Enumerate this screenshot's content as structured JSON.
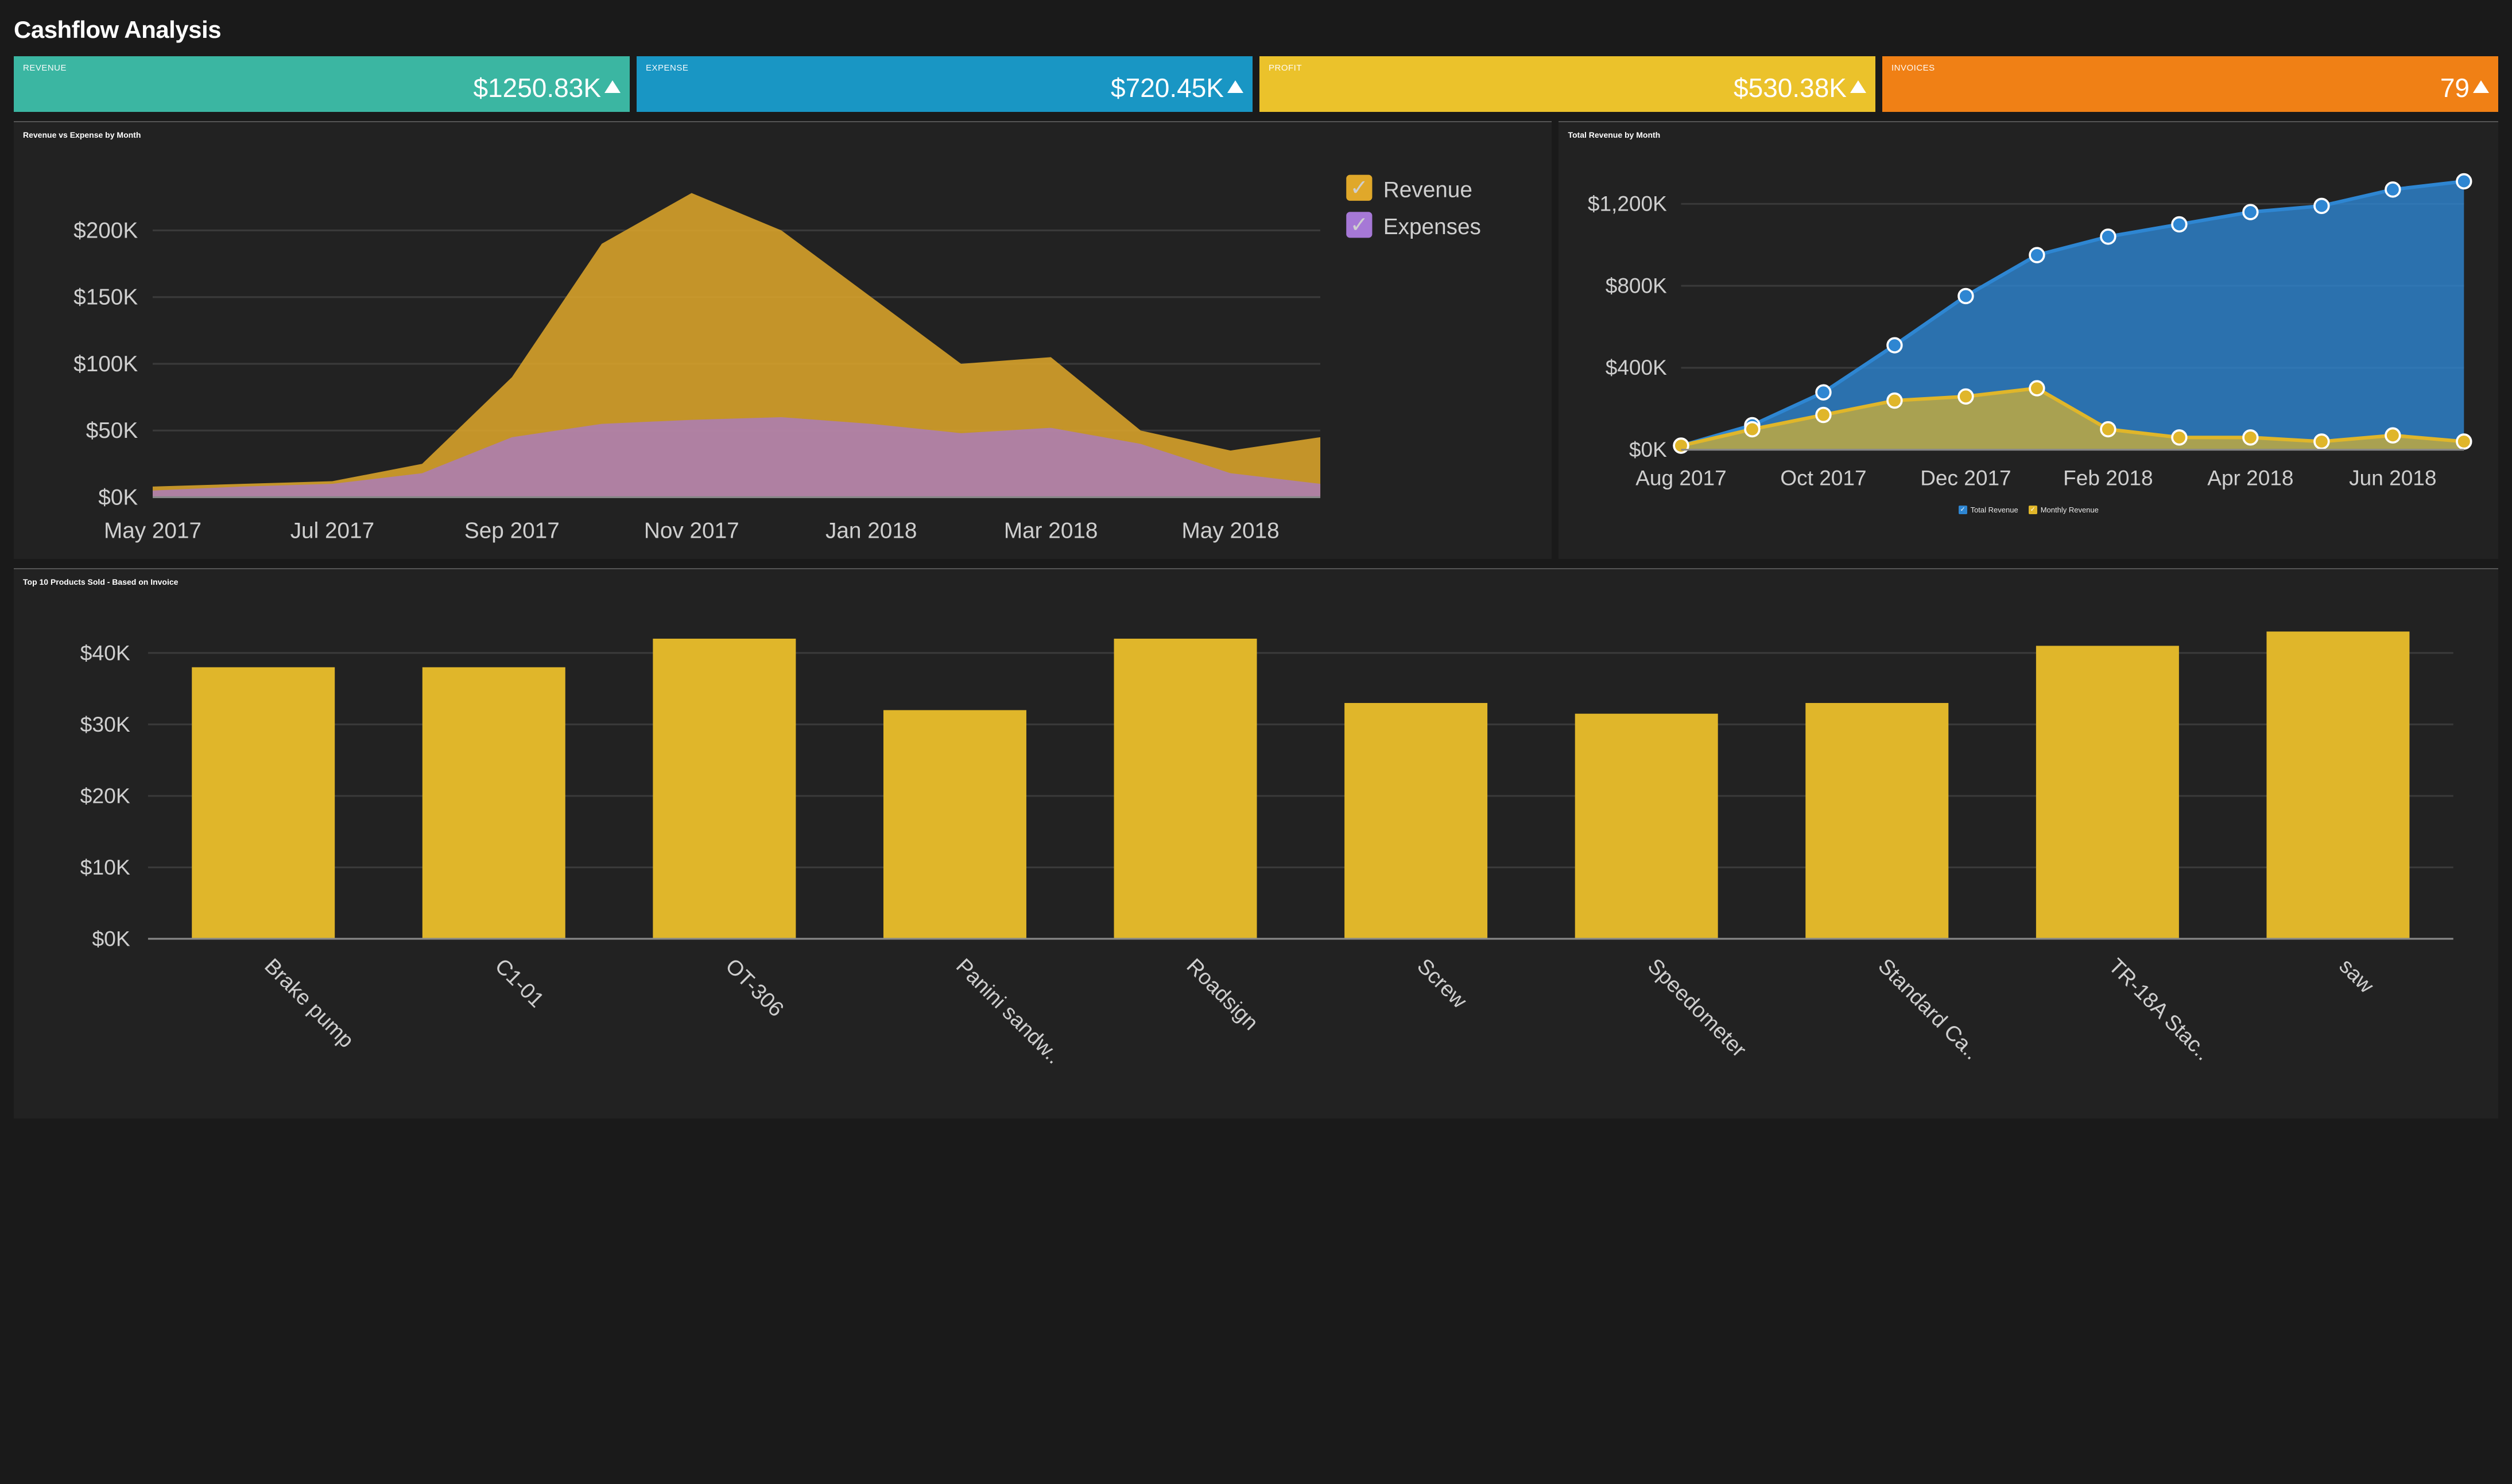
{
  "page": {
    "title": "Cashflow Analysis",
    "background_color": "#1a1a1a",
    "panel_background": "#222222",
    "panel_border_top": "#555555",
    "text_color": "#e8e8e8",
    "grid_color": "#3a3a3a"
  },
  "kpis": [
    {
      "id": "revenue",
      "label": "REVENUE",
      "value": "$1250.83K",
      "trend": "up",
      "bg": "#3bb6a2"
    },
    {
      "id": "expense",
      "label": "EXPENSE",
      "value": "$720.45K",
      "trend": "up",
      "bg": "#1996c4"
    },
    {
      "id": "profit",
      "label": "PROFIT",
      "value": "$530.38K",
      "trend": "up",
      "bg": "#ebc22b"
    },
    {
      "id": "invoices",
      "label": "INVOICES",
      "value": "79",
      "trend": "up",
      "bg": "#f08015"
    }
  ],
  "rev_vs_exp": {
    "title": "Revenue vs Expense by Month",
    "type": "area",
    "x_labels": [
      "May 2017",
      "Jul 2017",
      "Sep 2017",
      "Nov 2017",
      "Jan 2018",
      "Mar 2018",
      "May 2018"
    ],
    "x_tick_idx": [
      0,
      2,
      4,
      6,
      8,
      10,
      12
    ],
    "x_months": [
      "May 2017",
      "Jun 2017",
      "Jul 2017",
      "Aug 2017",
      "Sep 2017",
      "Oct 2017",
      "Nov 2017",
      "Dec 2017",
      "Jan 2018",
      "Feb 2018",
      "Mar 2018",
      "Apr 2018",
      "May 2018",
      "Jun 2018"
    ],
    "ylim": [
      0,
      250
    ],
    "yticks": [
      0,
      50,
      100,
      150,
      200
    ],
    "ytick_labels": [
      "$0K",
      "$50K",
      "$100K",
      "$150K",
      "$200K"
    ],
    "series": {
      "revenue": {
        "label": "Revenue",
        "color": "#e0a82a",
        "fill_opacity": 0.85,
        "values": [
          8,
          10,
          12,
          25,
          90,
          190,
          228,
          200,
          150,
          100,
          105,
          50,
          35,
          45
        ]
      },
      "expenses": {
        "label": "Expenses",
        "color": "#a678d6",
        "fill_opacity": 0.7,
        "values": [
          5,
          8,
          10,
          18,
          45,
          55,
          58,
          60,
          55,
          48,
          52,
          40,
          18,
          10
        ]
      }
    },
    "legend": [
      "revenue",
      "expenses"
    ],
    "label_fontsize": 12,
    "baseline_color": "#888888"
  },
  "total_rev": {
    "title": "Total Revenue by Month",
    "type": "area-line-markers",
    "x_labels": [
      "Aug 2017",
      "Oct 2017",
      "Dec 2017",
      "Feb 2018",
      "Apr 2018",
      "Jun 2018"
    ],
    "x_tick_idx": [
      0,
      2,
      4,
      6,
      8,
      10
    ],
    "x_months": [
      "Aug 2017",
      "Sep 2017",
      "Oct 2017",
      "Nov 2017",
      "Dec 2017",
      "Jan 2018",
      "Feb 2018",
      "Mar 2018",
      "Apr 2018",
      "May 2018",
      "Jun 2018",
      "Jul 2018"
    ],
    "ylim": [
      0,
      1400
    ],
    "yticks": [
      0,
      400,
      800,
      1200
    ],
    "ytick_labels": [
      "$0K",
      "$400K",
      "$800K",
      "$1,200K"
    ],
    "series": {
      "total": {
        "label": "Total Revenue",
        "color": "#2e86d2",
        "fill_opacity": 0.8,
        "values": [
          20,
          120,
          280,
          510,
          750,
          950,
          1040,
          1100,
          1160,
          1190,
          1270,
          1310
        ]
      },
      "monthly": {
        "label": "Monthly Revenue",
        "color": "#e0b62a",
        "fill_opacity": 0.7,
        "values": [
          20,
          100,
          170,
          240,
          260,
          300,
          100,
          60,
          60,
          40,
          70,
          40
        ]
      }
    },
    "marker": {
      "radius": 4,
      "stroke": "#ffffff",
      "stroke_width": 1.2
    },
    "legend": [
      "total",
      "monthly"
    ],
    "label_fontsize": 12
  },
  "top_products": {
    "title": "Top 10 Products Sold - Based on Invoice",
    "type": "bar",
    "categories": [
      "Brake pump",
      "C1-01",
      "OT-306",
      "Panini sandw..",
      "Roadsign",
      "Screw",
      "Speedometer",
      "Standard Ca..",
      "TR-18A Stac..",
      "saw"
    ],
    "values": [
      38,
      38,
      42,
      32,
      42,
      33,
      31.5,
      33,
      41,
      43
    ],
    "bar_color": "#e0b62a",
    "ylim": [
      0,
      45
    ],
    "yticks": [
      0,
      10,
      20,
      30,
      40
    ],
    "ytick_labels": [
      "$0K",
      "$10K",
      "$20K",
      "$30K",
      "$40K"
    ],
    "bar_width_ratio": 0.62,
    "label_fontsize": 12,
    "xlabel_rotation_deg": 45
  }
}
